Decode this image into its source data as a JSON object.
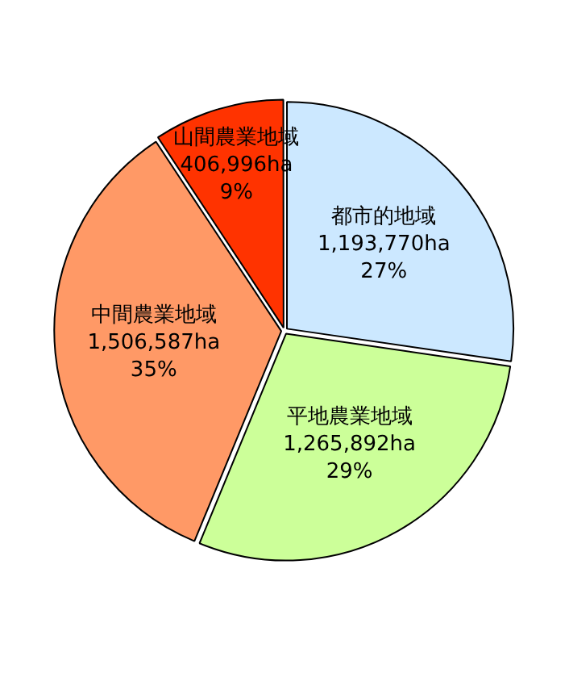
{
  "chart_data": {
    "type": "pie",
    "categories": [
      "都市的地域",
      "平地農業地域",
      "中間農業地域",
      "山間農業地域"
    ],
    "values": [
      1193770,
      1265892,
      1506587,
      406996
    ],
    "colors": [
      "#cce8ff",
      "#ccff99",
      "#ff9966",
      "#ff3300"
    ],
    "value_labels": [
      "1,193,770ha\n27%",
      "1,265,892ha\n29%",
      "1,506,587ha\n35%",
      "406,996ha\n9%"
    ],
    "legend": false
  }
}
